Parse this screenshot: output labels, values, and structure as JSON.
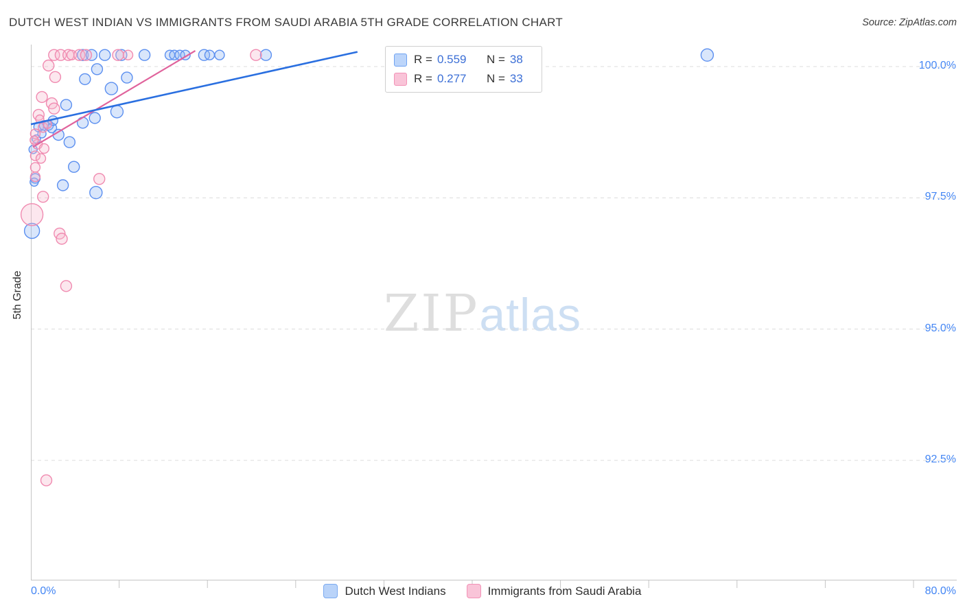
{
  "header": {
    "title": "DUTCH WEST INDIAN VS IMMIGRANTS FROM SAUDI ARABIA 5TH GRADE CORRELATION CHART",
    "source": "Source: ZipAtlas.com"
  },
  "watermark": {
    "zip": "ZIP",
    "atlas": "atlas"
  },
  "axes": {
    "y_label": "5th Grade",
    "y_ticks": [
      "100.0%",
      "97.5%",
      "95.0%",
      "92.5%"
    ],
    "x_ticks": [
      "0.0%",
      "80.0%"
    ]
  },
  "legend_box": {
    "series": [
      {
        "r_label": "R =",
        "r": "0.559",
        "n_label": "N =",
        "n": "38"
      },
      {
        "r_label": "R =",
        "r": "0.277",
        "n_label": "N =",
        "n": "33"
      }
    ]
  },
  "bottom_legend": [
    {
      "label": "Dutch West Indians"
    },
    {
      "label": "Immigrants from Saudi Arabia"
    }
  ],
  "colors": {
    "accent_blue": "#4285F4",
    "value_blue": "#3c6fd6",
    "series_blue_stroke": "#5b8ff0",
    "series_blue_fill": "rgba(147,183,244,0.35)",
    "series_pink_stroke": "#f08ab0",
    "series_pink_fill": "rgba(247,186,207,0.35)",
    "trend_blue": "#2a6fe0",
    "trend_pink": "#e0639c"
  },
  "chart_data": {
    "type": "scatter",
    "title": "DUTCH WEST INDIAN VS IMMIGRANTS FROM SAUDI ARABIA 5TH GRADE CORRELATION CHART",
    "xlabel": "",
    "ylabel": "5th Grade",
    "x_range": [
      0,
      80
    ],
    "y_range": [
      90.2,
      100.4
    ],
    "y_gridlines": [
      100,
      97.5,
      95,
      92.5
    ],
    "grid": "dashed-horizontal",
    "legend_position": "bottom-center",
    "series": [
      {
        "name": "Dutch West Indians",
        "color": "#5b8ff0",
        "fill": "rgba(147,183,244,0.35)",
        "r_stat": 0.559,
        "n": 38,
        "points": [
          [
            4.7,
            100.22,
            8
          ],
          [
            5.5,
            100.22,
            8
          ],
          [
            6.7,
            100.22,
            8
          ],
          [
            8.2,
            100.22,
            8
          ],
          [
            10.3,
            100.22,
            8
          ],
          [
            12.6,
            100.22,
            7
          ],
          [
            13.0,
            100.22,
            7
          ],
          [
            13.5,
            100.22,
            7
          ],
          [
            14.0,
            100.22,
            7
          ],
          [
            15.7,
            100.22,
            8
          ],
          [
            16.2,
            100.22,
            7
          ],
          [
            17.1,
            100.22,
            7
          ],
          [
            21.3,
            100.22,
            8
          ],
          [
            61.3,
            100.22,
            9
          ],
          [
            6.0,
            99.95,
            8
          ],
          [
            4.9,
            99.76,
            8
          ],
          [
            8.7,
            99.79,
            8
          ],
          [
            7.3,
            99.58,
            9
          ],
          [
            3.2,
            99.27,
            8
          ],
          [
            7.8,
            99.14,
            9
          ],
          [
            5.8,
            99.02,
            8
          ],
          [
            4.7,
            98.93,
            8
          ],
          [
            0.7,
            98.85,
            7
          ],
          [
            1.2,
            98.88,
            7
          ],
          [
            1.6,
            98.88,
            7
          ],
          [
            1.9,
            98.83,
            7
          ],
          [
            2.5,
            98.7,
            8
          ],
          [
            3.5,
            98.56,
            8
          ],
          [
            3.9,
            98.09,
            8
          ],
          [
            0.4,
            97.87,
            7
          ],
          [
            2.9,
            97.74,
            8
          ],
          [
            5.9,
            97.6,
            9
          ],
          [
            0.1,
            96.87,
            11
          ],
          [
            0.2,
            98.42,
            6
          ],
          [
            0.5,
            98.62,
            6
          ],
          [
            1.0,
            98.72,
            6
          ],
          [
            2.0,
            98.97,
            7
          ],
          [
            0.3,
            97.8,
            6
          ]
        ]
      },
      {
        "name": "Immigrants from Saudi Arabia",
        "color": "#f08ab0",
        "fill": "rgba(247,186,207,0.35)",
        "r_stat": 0.277,
        "n": 33,
        "points": [
          [
            2.1,
            100.22,
            8
          ],
          [
            2.7,
            100.22,
            8
          ],
          [
            3.4,
            100.22,
            8
          ],
          [
            3.7,
            100.22,
            7
          ],
          [
            4.4,
            100.22,
            8
          ],
          [
            5.0,
            100.22,
            8
          ],
          [
            7.9,
            100.22,
            8
          ],
          [
            8.8,
            100.22,
            7
          ],
          [
            20.4,
            100.22,
            8
          ],
          [
            1.6,
            100.02,
            8
          ],
          [
            2.2,
            99.8,
            8
          ],
          [
            1.0,
            99.42,
            8
          ],
          [
            1.9,
            99.3,
            8
          ],
          [
            2.1,
            99.2,
            8
          ],
          [
            0.7,
            99.08,
            8
          ],
          [
            1.1,
            98.84,
            7
          ],
          [
            0.4,
            98.72,
            7
          ],
          [
            0.6,
            98.52,
            7
          ],
          [
            1.2,
            98.44,
            7
          ],
          [
            0.4,
            98.3,
            7
          ],
          [
            0.9,
            98.25,
            7
          ],
          [
            0.4,
            98.08,
            7
          ],
          [
            0.4,
            97.9,
            7
          ],
          [
            1.1,
            97.52,
            8
          ],
          [
            6.2,
            97.86,
            8
          ],
          [
            0.1,
            97.18,
            16
          ],
          [
            2.6,
            96.82,
            8
          ],
          [
            2.8,
            96.72,
            8
          ],
          [
            3.2,
            95.82,
            8
          ],
          [
            1.4,
            92.12,
            8
          ],
          [
            0.3,
            98.6,
            6
          ],
          [
            0.8,
            99.0,
            6
          ],
          [
            1.5,
            98.9,
            6
          ]
        ]
      }
    ],
    "trendlines": [
      {
        "series": "Dutch West Indians",
        "color": "#2a6fe0",
        "width": 2.6,
        "x1": 0,
        "y1": 98.9,
        "x2": 29.6,
        "y2": 100.28
      },
      {
        "series": "Immigrants from Saudi Arabia",
        "color": "#e0639c",
        "width": 2.2,
        "x1": 0.2,
        "y1": 98.47,
        "x2": 14.9,
        "y2": 100.3
      }
    ]
  }
}
